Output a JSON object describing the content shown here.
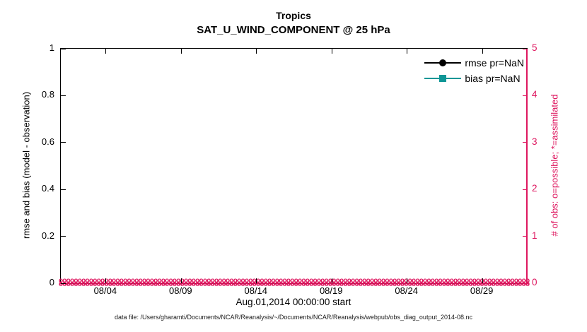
{
  "title": {
    "line1": "Tropics",
    "line2": "SAT_U_WIND_COMPONENT @ 25 hPa"
  },
  "colors": {
    "right_axis_accent": "#DE175F",
    "bias_teal": "#0E9696",
    "rmse_black": "#000000"
  },
  "axes": {
    "left": {
      "label": "rmse and bias (model - observation)",
      "ticks": [
        "0",
        "0.2",
        "0.4",
        "0.6",
        "0.8",
        "1"
      ]
    },
    "right": {
      "label": "# of obs: o=possible; *=assimilated",
      "ticks": [
        "0",
        "1",
        "2",
        "3",
        "4",
        "5"
      ]
    },
    "x": {
      "ticks": [
        "08/04",
        "08/09",
        "08/14",
        "08/19",
        "08/24",
        "08/29"
      ],
      "tick_days": [
        3,
        8,
        13,
        18,
        23,
        28
      ],
      "span_days": 31,
      "label": "Aug.01,2014 00:00:00 start"
    }
  },
  "legend": {
    "entries": [
      {
        "label": "rmse pr=NaN",
        "marker": "circle",
        "color": "#000000"
      },
      {
        "label": "bias pr=NaN",
        "marker": "square",
        "color": "#0E9696"
      }
    ]
  },
  "footer": "data file: /Users/gharamti/Documents/NCAR/Reanalysis/~/Documents/NCAR/Reanalysis/webpub/obs_diag_output_2014-08.nc",
  "chart_data": {
    "type": "line",
    "title": "Tropics",
    "subtitle": "SAT_U_WIND_COMPONENT @ 25 hPa",
    "xlabel": "Aug.01,2014 00:00:00 start",
    "x_start": "2014-08-01 00:00:00",
    "x_tick_labels": [
      "08/04",
      "08/09",
      "08/14",
      "08/19",
      "08/24",
      "08/29"
    ],
    "left_axis": {
      "label": "rmse and bias (model - observation)",
      "ylim": [
        0,
        1
      ]
    },
    "right_axis": {
      "label": "# of obs: o=possible; *=assimilated",
      "ylim": [
        0,
        5
      ]
    },
    "grid": false,
    "legend_position": "top-right-inside",
    "series": [
      {
        "name": "rmse pr=NaN",
        "axis": "left",
        "values": "NaN - no curve plotted"
      },
      {
        "name": "bias pr=NaN",
        "axis": "left",
        "values": "NaN - no curve plotted"
      },
      {
        "name": "# of obs possible",
        "axis": "right",
        "marker": "o",
        "constant_value": 0,
        "points": 124
      },
      {
        "name": "# of obs assimilated",
        "axis": "right",
        "marker": "*",
        "constant_value": 0,
        "points": 124
      }
    ]
  }
}
